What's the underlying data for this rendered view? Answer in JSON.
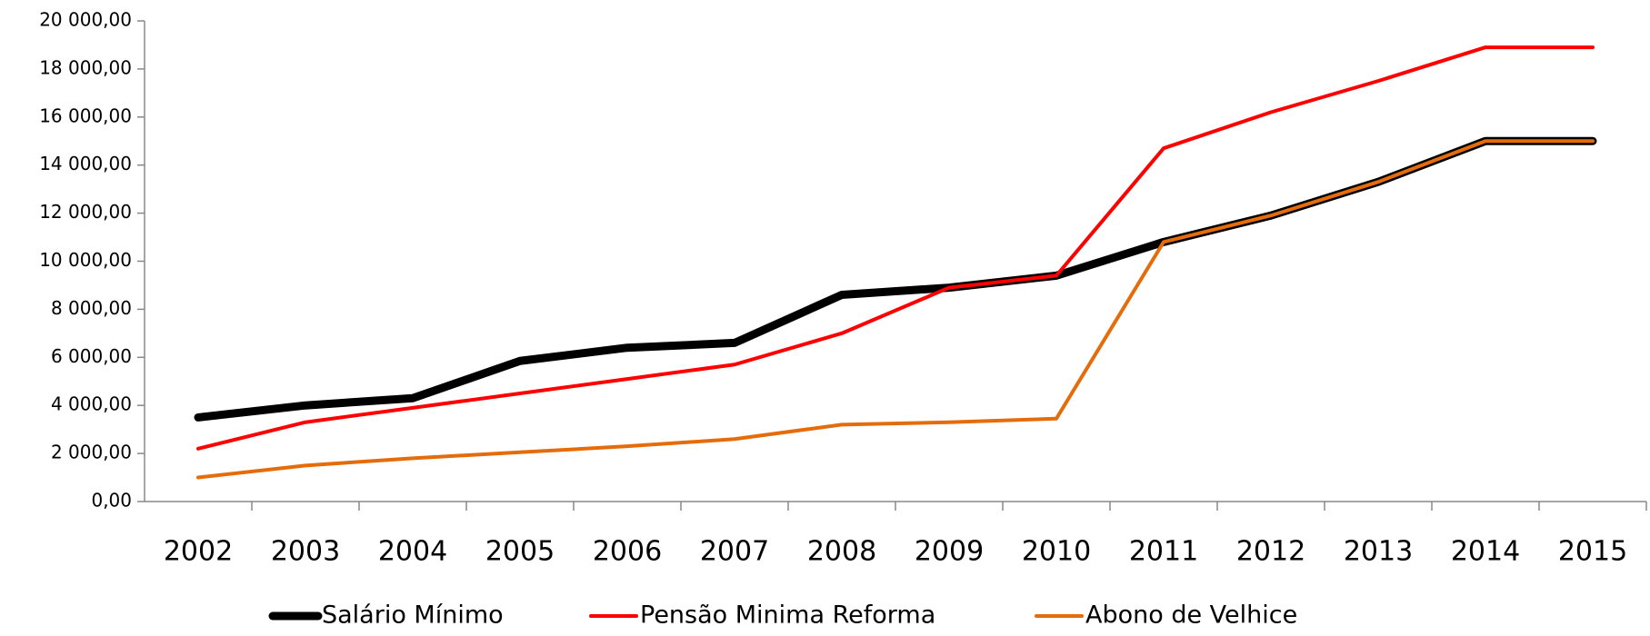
{
  "chart_data": {
    "type": "line",
    "categories": [
      "2002",
      "2003",
      "2004",
      "2005",
      "2006",
      "2007",
      "2008",
      "2009",
      "2010",
      "2011",
      "2012",
      "2013",
      "2014",
      "2015"
    ],
    "series": [
      {
        "name": "Salário Mínimo",
        "color": "#000000",
        "values": [
          3500,
          4000,
          4300,
          5850,
          6400,
          6600,
          8600,
          8900,
          9400,
          10800,
          11900,
          13300,
          15000,
          15000
        ]
      },
      {
        "name": "Pensão Minima Reforma",
        "color": "#ff0000",
        "values": [
          2200,
          3300,
          3900,
          4500,
          5100,
          5700,
          7000,
          8900,
          9400,
          14700,
          16200,
          17500,
          18900,
          18900
        ]
      },
      {
        "name": "Abono de Velhice",
        "color": "#e46c0a",
        "values": [
          1000,
          1500,
          1800,
          2050,
          2300,
          2600,
          3200,
          3300,
          3450,
          10800,
          11900,
          13300,
          15000,
          15000
        ]
      }
    ],
    "ylim": [
      0,
      20000
    ],
    "yticks": [
      {
        "value": 0,
        "label": "0,00"
      },
      {
        "value": 2000,
        "label": "2 000,00"
      },
      {
        "value": 4000,
        "label": "4 000,00"
      },
      {
        "value": 6000,
        "label": "6 000,00"
      },
      {
        "value": 8000,
        "label": "8 000,00"
      },
      {
        "value": 10000,
        "label": "10 000,00"
      },
      {
        "value": 12000,
        "label": "12 000,00"
      },
      {
        "value": 14000,
        "label": "14 000,00"
      },
      {
        "value": 16000,
        "label": "16 000,00"
      },
      {
        "value": 18000,
        "label": "18 000,00"
      },
      {
        "value": 20000,
        "label": "20 000,00"
      }
    ],
    "legend": "bottom"
  }
}
